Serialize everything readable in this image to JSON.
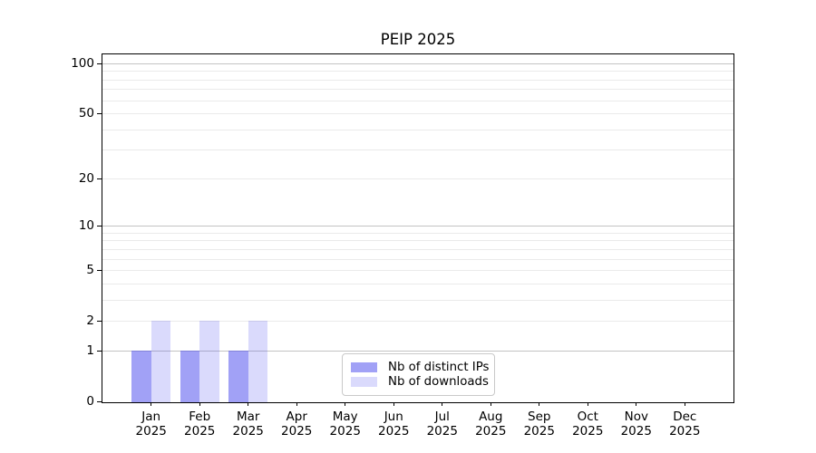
{
  "chart_data": {
    "type": "bar",
    "title": "PEIP 2025",
    "categories": [
      "Jan 2025",
      "Feb 2025",
      "Mar 2025",
      "Apr 2025",
      "May 2025",
      "Jun 2025",
      "Jul 2025",
      "Aug 2025",
      "Sep 2025",
      "Oct 2025",
      "Nov 2025",
      "Dec 2025"
    ],
    "series": [
      {
        "name": "Nb of distinct IPs",
        "color": "rgba(68,68,238,0.5)",
        "values": [
          1,
          1,
          1,
          0,
          0,
          0,
          0,
          0,
          0,
          0,
          0,
          0
        ]
      },
      {
        "name": "Nb of downloads",
        "color": "rgba(68,68,238,0.2)",
        "values": [
          2,
          2,
          2,
          0,
          0,
          0,
          0,
          0,
          0,
          0,
          0,
          0
        ]
      }
    ],
    "y_axis": {
      "scale": "log1p",
      "range": [
        0,
        100
      ],
      "tick_labels": [
        0,
        1,
        2,
        5,
        10,
        20,
        50,
        100
      ],
      "decade_gridlines": [
        1,
        10,
        100
      ],
      "minor_gridlines": [
        2,
        3,
        4,
        5,
        6,
        7,
        8,
        9,
        20,
        30,
        40,
        50,
        60,
        70,
        80,
        90
      ]
    },
    "legend_position": "lower center",
    "grid": true,
    "colors": {
      "axis": "#000000",
      "major_grid": "#c3c3c3",
      "minor_grid": "#eaeaea"
    }
  }
}
